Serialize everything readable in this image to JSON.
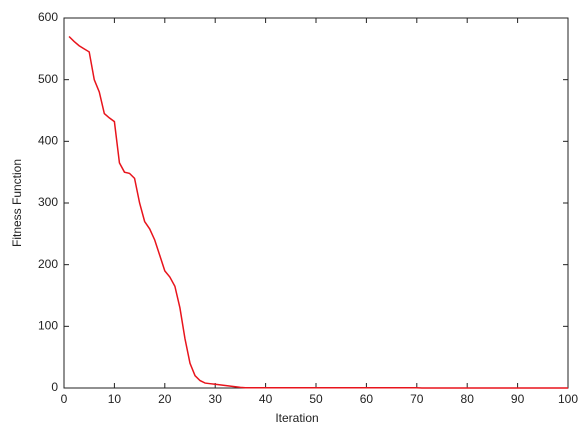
{
  "chart_data": {
    "type": "line",
    "x_label": "Iteration",
    "y_label": "Fitness Function",
    "x": [
      1,
      2,
      3,
      4,
      5,
      6,
      7,
      8,
      9,
      10,
      11,
      12,
      13,
      14,
      15,
      16,
      17,
      18,
      19,
      20,
      21,
      22,
      23,
      24,
      25,
      26,
      27,
      28,
      29,
      30,
      31,
      32,
      33,
      34,
      35,
      36,
      37,
      38,
      39,
      40,
      41,
      42,
      43,
      44,
      45,
      46,
      47,
      48,
      49,
      50,
      51,
      52,
      53,
      54,
      55,
      56,
      57,
      58,
      59,
      60,
      61,
      62,
      63,
      64,
      65,
      66,
      67,
      68,
      69,
      70,
      71,
      72,
      73,
      74,
      75,
      76,
      77,
      78,
      79,
      80,
      81,
      82,
      83,
      84,
      85,
      86,
      87,
      88,
      89,
      90,
      91,
      92,
      93,
      94,
      95,
      96,
      97,
      98,
      99,
      100
    ],
    "series": [
      {
        "color": "#e8141c",
        "values": [
          570,
          562,
          555,
          550,
          545,
          500,
          480,
          445,
          438,
          432,
          365,
          350,
          348,
          340,
          300,
          270,
          258,
          240,
          215,
          190,
          180,
          165,
          130,
          80,
          40,
          20,
          12,
          8,
          7,
          6,
          5,
          4,
          3,
          2,
          1,
          0.5,
          0.5,
          0.5,
          0.5,
          0.5,
          0.5,
          0.5,
          0.5,
          0.5,
          0.5,
          0.5,
          0.5,
          0.5,
          0.5,
          0.5,
          0.5,
          0.5,
          0.5,
          0.5,
          0.5,
          0.5,
          0.5,
          0.5,
          0.5,
          0.5,
          0.5,
          0.5,
          0.5,
          0.5,
          0.5,
          0.5,
          0.5,
          0.5,
          0.5,
          0.5,
          0,
          0,
          0,
          0,
          0,
          0,
          0,
          0,
          0,
          0,
          0,
          0,
          0,
          0,
          0,
          0,
          0,
          0,
          0,
          0,
          0,
          0,
          0,
          0,
          0,
          0,
          0,
          0,
          0,
          0
        ]
      }
    ],
    "xlim": [
      0,
      100
    ],
    "xticks": [
      0,
      10,
      20,
      30,
      40,
      50,
      60,
      70,
      80,
      90,
      100
    ],
    "ylim": [
      0,
      600
    ],
    "yticks": [
      0,
      100,
      200,
      300,
      400,
      500,
      600
    ],
    "grid": false
  }
}
